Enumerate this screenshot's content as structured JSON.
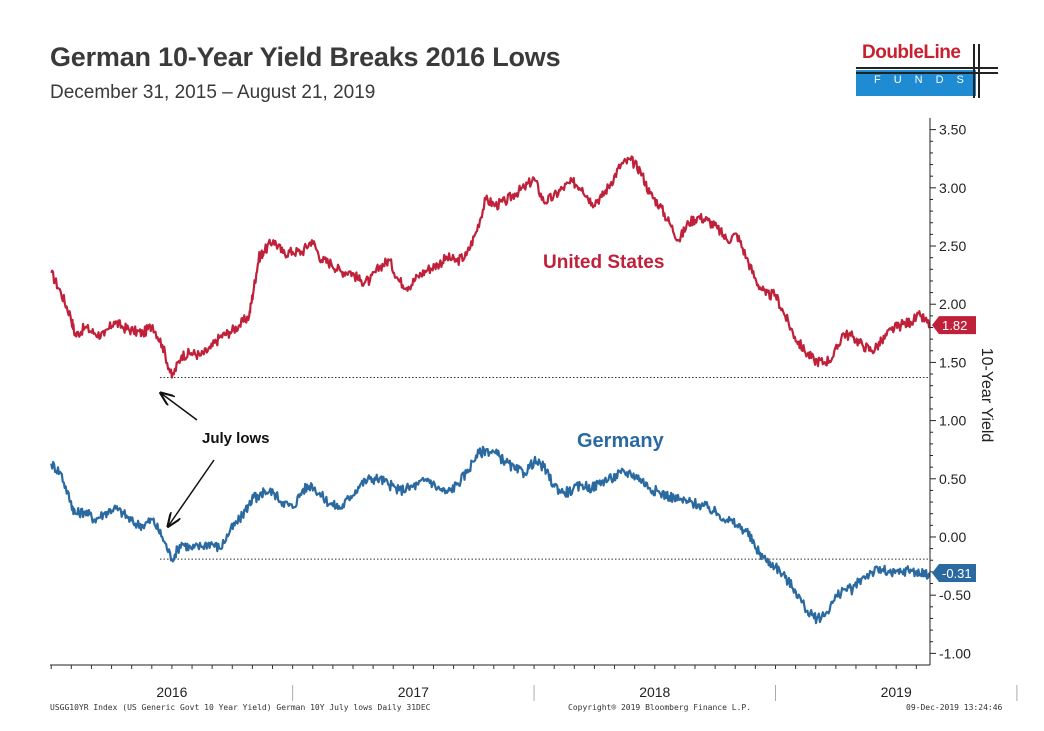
{
  "header": {
    "title": "German 10-Year Yield Breaks 2016 Lows",
    "subtitle": "December 31, 2015 – August 21, 2019"
  },
  "logo": {
    "word": "DoubleLine",
    "sub": "FUNDS",
    "colors": {
      "red": "#c8202f",
      "blue": "#1e8bd2"
    }
  },
  "footer": {
    "left": "USGG10YR Index (US Generic Govt 10 Year Yield) German 10Y July lows  Daily 31DEC",
    "center": "Copyright® 2019 Bloomberg Finance L.P.",
    "right": "09-Dec-2019 13:24:46"
  },
  "chart_data": {
    "type": "line",
    "title": "German 10-Year Yield Breaks 2016 Lows",
    "ylabel": "10-Year Yield",
    "ylim": [
      -1.1,
      3.6
    ],
    "yticks": [
      "3.50",
      "3.00",
      "2.50",
      "2.00",
      "1.50",
      "1.00",
      "0.50",
      "0.00",
      "-0.50",
      "-1.00"
    ],
    "ytick_values": [
      3.5,
      3.0,
      2.5,
      2.0,
      1.5,
      1.0,
      0.5,
      0.0,
      -0.5,
      -1.0
    ],
    "xlim": [
      2015.995,
      2019.64
    ],
    "xticks": [
      "2016",
      "2017",
      "2018",
      "2019"
    ],
    "xtick_values": [
      2016.5,
      2017.5,
      2018.5,
      2019.5
    ],
    "xgrid_values": [
      2017.0,
      2018.0,
      2019.0,
      2020.0
    ],
    "series": [
      {
        "name": "United States",
        "color": "#c0213a",
        "last_label": "1.82",
        "x": [
          2016.0,
          2016.04,
          2016.08,
          2016.1,
          2016.14,
          2016.18,
          2016.22,
          2016.26,
          2016.3,
          2016.34,
          2016.38,
          2016.42,
          2016.46,
          2016.5,
          2016.54,
          2016.58,
          2016.62,
          2016.66,
          2016.7,
          2016.74,
          2016.78,
          2016.82,
          2016.84,
          2016.86,
          2016.88,
          2016.92,
          2016.96,
          2017.0,
          2017.04,
          2017.08,
          2017.12,
          2017.16,
          2017.2,
          2017.24,
          2017.28,
          2017.32,
          2017.36,
          2017.4,
          2017.44,
          2017.48,
          2017.52,
          2017.56,
          2017.6,
          2017.64,
          2017.68,
          2017.72,
          2017.76,
          2017.8,
          2017.84,
          2017.88,
          2017.92,
          2017.96,
          2018.0,
          2018.04,
          2018.08,
          2018.12,
          2018.16,
          2018.2,
          2018.24,
          2018.28,
          2018.32,
          2018.36,
          2018.4,
          2018.44,
          2018.48,
          2018.52,
          2018.56,
          2018.6,
          2018.64,
          2018.68,
          2018.72,
          2018.76,
          2018.8,
          2018.84,
          2018.88,
          2018.92,
          2018.96,
          2019.0,
          2019.04,
          2019.08,
          2019.12,
          2019.16,
          2019.2,
          2019.24,
          2019.28,
          2019.32,
          2019.36,
          2019.4,
          2019.44,
          2019.48,
          2019.52,
          2019.56,
          2019.6,
          2019.64
        ],
        "values": [
          2.27,
          2.1,
          1.9,
          1.73,
          1.8,
          1.75,
          1.73,
          1.85,
          1.8,
          1.77,
          1.75,
          1.82,
          1.65,
          1.37,
          1.56,
          1.58,
          1.56,
          1.62,
          1.72,
          1.76,
          1.82,
          1.9,
          2.15,
          2.4,
          2.45,
          2.55,
          2.44,
          2.45,
          2.45,
          2.55,
          2.38,
          2.35,
          2.28,
          2.28,
          2.2,
          2.2,
          2.32,
          2.38,
          2.2,
          2.15,
          2.24,
          2.3,
          2.34,
          2.4,
          2.37,
          2.42,
          2.62,
          2.9,
          2.85,
          2.88,
          2.95,
          3.0,
          3.08,
          2.88,
          2.92,
          3.0,
          3.05,
          3.0,
          2.87,
          2.92,
          3.05,
          3.2,
          3.24,
          3.15,
          2.95,
          2.85,
          2.7,
          2.55,
          2.7,
          2.75,
          2.72,
          2.65,
          2.55,
          2.6,
          2.4,
          2.2,
          2.08,
          2.08,
          1.9,
          1.72,
          1.6,
          1.52,
          1.5,
          1.55,
          1.75,
          1.72,
          1.65,
          1.6,
          1.68,
          1.78,
          1.82,
          1.85,
          1.9,
          1.82
        ]
      },
      {
        "name": "Germany",
        "color": "#2b6aa0",
        "last_label": "-0.31",
        "x": [
          2016.0,
          2016.04,
          2016.08,
          2016.1,
          2016.14,
          2016.18,
          2016.22,
          2016.26,
          2016.3,
          2016.34,
          2016.38,
          2016.42,
          2016.46,
          2016.5,
          2016.54,
          2016.58,
          2016.62,
          2016.66,
          2016.7,
          2016.74,
          2016.78,
          2016.82,
          2016.84,
          2016.86,
          2016.88,
          2016.92,
          2016.96,
          2017.0,
          2017.04,
          2017.08,
          2017.12,
          2017.16,
          2017.2,
          2017.24,
          2017.28,
          2017.32,
          2017.36,
          2017.4,
          2017.44,
          2017.48,
          2017.52,
          2017.56,
          2017.6,
          2017.64,
          2017.68,
          2017.72,
          2017.76,
          2017.8,
          2017.84,
          2017.88,
          2017.92,
          2017.96,
          2018.0,
          2018.04,
          2018.08,
          2018.12,
          2018.16,
          2018.2,
          2018.24,
          2018.28,
          2018.32,
          2018.36,
          2018.4,
          2018.44,
          2018.48,
          2018.52,
          2018.56,
          2018.6,
          2018.64,
          2018.68,
          2018.72,
          2018.76,
          2018.8,
          2018.84,
          2018.88,
          2018.92,
          2018.96,
          2019.0,
          2019.04,
          2019.08,
          2019.12,
          2019.16,
          2019.2,
          2019.24,
          2019.28,
          2019.32,
          2019.36,
          2019.4,
          2019.44,
          2019.48,
          2019.52,
          2019.56,
          2019.6,
          2019.64
        ],
        "values": [
          0.63,
          0.55,
          0.3,
          0.2,
          0.22,
          0.15,
          0.2,
          0.25,
          0.2,
          0.12,
          0.1,
          0.15,
          0.0,
          -0.19,
          -0.05,
          -0.1,
          -0.08,
          -0.05,
          -0.1,
          0.05,
          0.15,
          0.28,
          0.35,
          0.32,
          0.4,
          0.38,
          0.3,
          0.25,
          0.4,
          0.45,
          0.35,
          0.28,
          0.25,
          0.35,
          0.45,
          0.5,
          0.5,
          0.45,
          0.4,
          0.42,
          0.45,
          0.5,
          0.42,
          0.38,
          0.45,
          0.55,
          0.7,
          0.75,
          0.72,
          0.65,
          0.58,
          0.55,
          0.65,
          0.6,
          0.45,
          0.38,
          0.4,
          0.45,
          0.42,
          0.48,
          0.5,
          0.55,
          0.55,
          0.5,
          0.42,
          0.38,
          0.35,
          0.32,
          0.3,
          0.28,
          0.25,
          0.2,
          0.15,
          0.1,
          0.05,
          -0.1,
          -0.2,
          -0.25,
          -0.35,
          -0.45,
          -0.6,
          -0.7,
          -0.68,
          -0.55,
          -0.45,
          -0.45,
          -0.35,
          -0.3,
          -0.28,
          -0.32,
          -0.3,
          -0.28,
          -0.32,
          -0.31
        ]
      }
    ],
    "reference_lines": [
      {
        "name": "US July low",
        "value": 1.37
      },
      {
        "name": "Germany July low",
        "value": -0.19
      }
    ],
    "annotations": [
      {
        "text": "United States",
        "color": "#c0213a"
      },
      {
        "text": "Germany",
        "color": "#2b6aa0"
      },
      {
        "text": "July lows",
        "color": "#111111"
      }
    ]
  }
}
